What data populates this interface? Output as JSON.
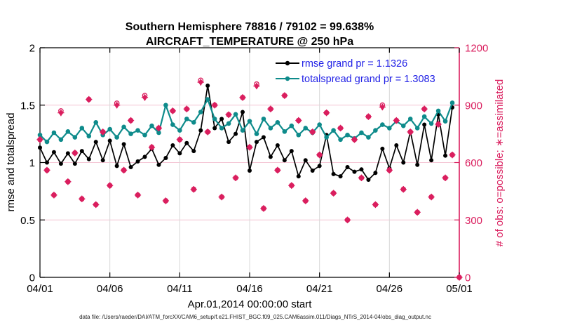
{
  "colors": {
    "rmse_black": "#000000",
    "totalspread_teal": "#0e8b8b",
    "obs_pink": "#da1e5e",
    "legend_blue": "#2222e6",
    "grid_horizontal_pink": "#f4c5d4",
    "grid_vertical_gray": "#d8d8d8",
    "axis_black": "#000000",
    "background": "#ffffff"
  },
  "footer": {
    "data_file": "data file: /Users/raeder/DAI/ATM_forcXX/CAM6_setup/f.e21.FHIST_BGC.f09_025.CAM6assim.011/Diags_NTrS_2014-04/obs_diag_output.nc"
  },
  "chart_data": {
    "type": "line",
    "title": "Southern Hemisphere 78816 / 79102 = 99.638%",
    "subtitle": "AIRCRAFT_TEMPERATURE @ 250 hPa",
    "xlabel": "Apr.01,2014 00:00:00 start",
    "ylabel_left": "rmse and totalspread",
    "ylabel_right": "# of obs: o=possible; ∗=assimilated",
    "grid": "on",
    "legend_position": "top-right-inside",
    "xlim_days": [
      0,
      30
    ],
    "ylim_left": [
      0,
      2
    ],
    "yticks_left": [
      0,
      0.5,
      1,
      1.5,
      2
    ],
    "ytick_labels_left": [
      "0",
      "0.5",
      "1",
      "1.5",
      "2"
    ],
    "ylim_right": [
      0,
      1200
    ],
    "yticks_right": [
      0,
      300,
      600,
      900,
      1200
    ],
    "ytick_labels_right": [
      "0",
      "300",
      "600",
      "900",
      "1200"
    ],
    "x_ticks": {
      "days": [
        0,
        5,
        10,
        15,
        20,
        25,
        30
      ],
      "labels": [
        "04/01",
        "04/06",
        "04/11",
        "04/16",
        "04/21",
        "04/26",
        "05/01"
      ]
    },
    "x_days": [
      0,
      0.5,
      1,
      1.5,
      2,
      2.5,
      3,
      3.5,
      4,
      4.5,
      5,
      5.5,
      6,
      6.5,
      7,
      7.5,
      8,
      8.5,
      9,
      9.5,
      10,
      10.5,
      11,
      11.5,
      12,
      12.5,
      13,
      13.5,
      14,
      14.5,
      15,
      15.5,
      16,
      16.5,
      17,
      17.5,
      18,
      18.5,
      19,
      19.5,
      20,
      20.5,
      21,
      21.5,
      22,
      22.5,
      23,
      23.5,
      24,
      24.5,
      25,
      25.5,
      26,
      26.5,
      27,
      27.5,
      28,
      28.5,
      29,
      29.5,
      30
    ],
    "series": [
      {
        "name": "rmse",
        "legend": "rmse grand pr = 1.1326",
        "grand_pr": 1.1326,
        "axis": "left",
        "type": "line",
        "marker": "filled-circle",
        "color": "#000000",
        "values": [
          1.13,
          1.0,
          1.09,
          0.99,
          1.08,
          0.99,
          1.1,
          1.03,
          1.18,
          1.02,
          1.19,
          0.97,
          1.16,
          0.96,
          1.01,
          1.05,
          1.12,
          0.98,
          1.04,
          1.15,
          1.08,
          1.17,
          1.1,
          1.28,
          1.67,
          1.3,
          1.38,
          1.18,
          1.25,
          1.44,
          0.93,
          1.18,
          1.22,
          1.05,
          1.15,
          1.02,
          1.1,
          0.88,
          1.02,
          0.93,
          0.97,
          1.24,
          0.9,
          0.88,
          0.96,
          0.92,
          0.94,
          0.85,
          0.91,
          1.12,
          0.95,
          1.15,
          1.0,
          1.27,
          0.98,
          1.33,
          1.02,
          1.42,
          1.06,
          1.48,
          null
        ]
      },
      {
        "name": "totalspread",
        "legend": "totalspread grand pr = 1.3083",
        "grand_pr": 1.3083,
        "axis": "left",
        "type": "line",
        "marker": "filled-circle",
        "color": "#0e8b8b",
        "values": [
          1.24,
          1.18,
          1.26,
          1.2,
          1.27,
          1.22,
          1.3,
          1.23,
          1.35,
          1.24,
          1.29,
          1.22,
          1.31,
          1.25,
          1.28,
          1.24,
          1.32,
          1.26,
          1.5,
          1.33,
          1.28,
          1.38,
          1.35,
          1.44,
          1.55,
          1.38,
          1.3,
          1.34,
          1.42,
          1.28,
          1.36,
          1.25,
          1.38,
          1.3,
          1.35,
          1.27,
          1.32,
          1.24,
          1.3,
          1.26,
          1.33,
          1.22,
          1.28,
          1.2,
          1.24,
          1.21,
          1.26,
          1.22,
          1.28,
          1.33,
          1.3,
          1.36,
          1.32,
          1.38,
          1.3,
          1.4,
          1.34,
          1.45,
          1.36,
          1.52,
          null
        ]
      },
      {
        "name": "possible-obs",
        "legend": null,
        "axis": "right",
        "type": "scatter",
        "marker": "o",
        "color": "#da1e5e",
        "values": [
          720,
          560,
          430,
          870,
          500,
          650,
          410,
          930,
          380,
          760,
          480,
          910,
          560,
          820,
          430,
          950,
          680,
          780,
          400,
          870,
          720,
          880,
          460,
          1030,
          760,
          900,
          420,
          850,
          520,
          940,
          680,
          1010,
          360,
          880,
          560,
          950,
          480,
          820,
          400,
          760,
          640,
          860,
          440,
          780,
          300,
          720,
          520,
          840,
          380,
          900,
          560,
          820,
          460,
          760,
          340,
          880,
          420,
          800,
          520,
          640,
          0
        ]
      },
      {
        "name": "assimilated-obs",
        "legend": null,
        "axis": "right",
        "type": "scatter",
        "marker": "*",
        "color": "#da1e5e",
        "values": [
          720,
          560,
          430,
          860,
          500,
          650,
          410,
          930,
          380,
          760,
          480,
          900,
          560,
          820,
          430,
          940,
          680,
          780,
          400,
          870,
          720,
          880,
          460,
          1020,
          760,
          900,
          420,
          850,
          520,
          940,
          680,
          1000,
          360,
          880,
          560,
          950,
          480,
          820,
          400,
          760,
          640,
          860,
          440,
          780,
          300,
          720,
          520,
          840,
          380,
          890,
          560,
          820,
          460,
          760,
          340,
          880,
          420,
          800,
          520,
          640,
          0
        ]
      }
    ]
  }
}
